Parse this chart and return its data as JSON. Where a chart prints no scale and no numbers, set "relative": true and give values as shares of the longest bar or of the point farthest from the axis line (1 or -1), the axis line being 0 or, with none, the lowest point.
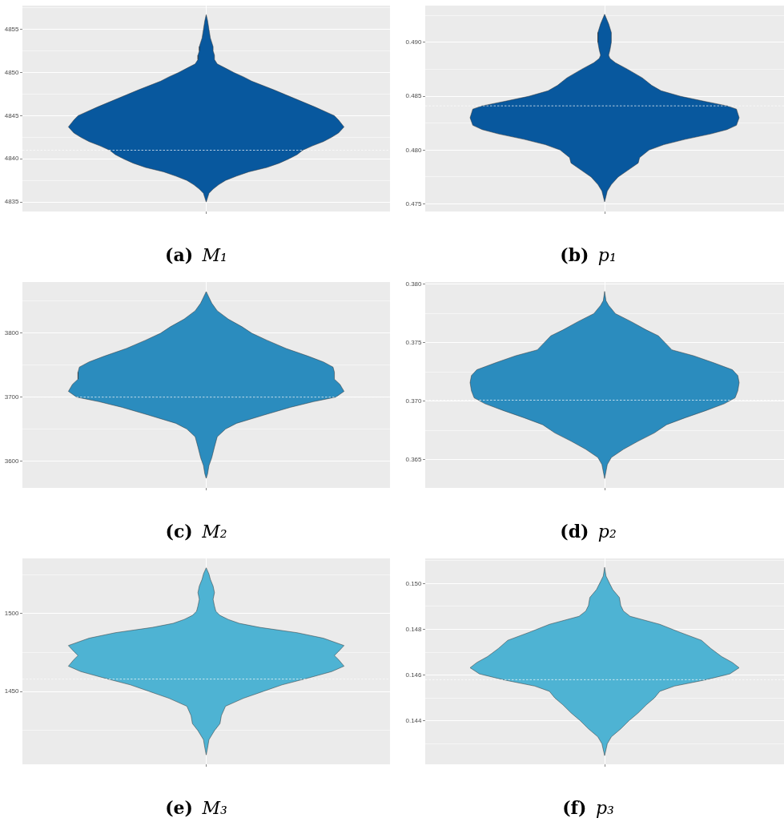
{
  "chart_data": [
    {
      "type": "area",
      "orientation": "horizontal",
      "relative": true,
      "title": "(a) M₁",
      "color": "#08589e",
      "x": [
        4835,
        4835.5,
        4836,
        4836.5,
        4837,
        4837.5,
        4838,
        4838.5,
        4839,
        4839.5,
        4840,
        4840.5,
        4841,
        4841.5,
        4842,
        4842.5,
        4843,
        4843.7,
        4844.5,
        4845,
        4846,
        4847,
        4848,
        4849,
        4849.5,
        4850,
        4850.5,
        4851,
        4851.5,
        4852,
        4852.5,
        4853,
        4854,
        4855,
        4856,
        4856.7
      ],
      "values": [
        0,
        0.01,
        0.02,
        0.05,
        0.09,
        0.14,
        0.22,
        0.31,
        0.44,
        0.53,
        0.6,
        0.66,
        0.7,
        0.77,
        0.85,
        0.91,
        0.96,
        1,
        0.96,
        0.93,
        0.79,
        0.64,
        0.49,
        0.33,
        0.27,
        0.2,
        0.14,
        0.08,
        0.06,
        0.06,
        0.05,
        0.05,
        0.03,
        0.02,
        0.01,
        0
      ],
      "ylim": [
        4833.9,
        4857.75
      ],
      "yticks": [
        4835,
        {
          "value": 4837.5,
          "label": null
        },
        4840,
        {
          "value": 4842.5,
          "label": null
        },
        4845,
        {
          "value": 4847.5,
          "label": null
        },
        4850,
        {
          "value": 4852.5,
          "label": null
        },
        4855,
        {
          "value": 4857.5,
          "label": null
        }
      ],
      "grid": true,
      "tick_labels": "y",
      "ref_lines": [
        {
          "axis": "y",
          "value": 4841,
          "color": "#ffffff",
          "line_style": "dashed"
        }
      ]
    },
    {
      "type": "area",
      "orientation": "horizontal",
      "relative": true,
      "title": "(b) p₁",
      "color": "#08589e",
      "x": [
        0.4752,
        0.4762,
        0.4768,
        0.4775,
        0.4781,
        0.4788,
        0.4793,
        0.48,
        0.4805,
        0.481,
        0.4815,
        0.4819,
        0.4823,
        0.483,
        0.4838,
        0.4841,
        0.4845,
        0.485,
        0.4855,
        0.486,
        0.4867,
        0.4875,
        0.4881,
        0.4885,
        0.4888,
        0.4893,
        0.49,
        0.4909,
        0.4917,
        0.4926
      ],
      "values": [
        0,
        0.02,
        0.05,
        0.1,
        0.17,
        0.25,
        0.26,
        0.33,
        0.44,
        0.6,
        0.79,
        0.91,
        0.98,
        1,
        0.98,
        0.91,
        0.75,
        0.56,
        0.42,
        0.35,
        0.28,
        0.17,
        0.08,
        0.04,
        0.03,
        0.04,
        0.05,
        0.05,
        0.03,
        0
      ],
      "ylim": [
        0.4743,
        0.4934
      ],
      "yticks": [
        0.475,
        {
          "value": 0.4775,
          "label": null
        },
        {
          "value": 0.48,
          "label": "0.480"
        },
        {
          "value": 0.4825,
          "label": null
        },
        0.485,
        {
          "value": 0.4875,
          "label": null
        },
        {
          "value": 0.49,
          "label": "0.490"
        },
        {
          "value": 0.4925,
          "label": null
        }
      ],
      "grid": true,
      "tick_labels": "y",
      "ref_lines": [
        {
          "axis": "y",
          "value": 0.4841,
          "color": "#ffffff",
          "line_style": "dashed"
        }
      ]
    },
    {
      "type": "area",
      "orientation": "horizontal",
      "relative": true,
      "title": "(c) M₂",
      "color": "#2b8cbe",
      "x": [
        3573,
        3580,
        3593,
        3605,
        3622,
        3638,
        3650,
        3659,
        3672,
        3684,
        3693,
        3700,
        3709,
        3720,
        3728,
        3739,
        3747,
        3755,
        3764,
        3776,
        3789,
        3800,
        3810,
        3822,
        3835,
        3847,
        3856,
        3865
      ],
      "values": [
        0,
        0.01,
        0.02,
        0.04,
        0.06,
        0.08,
        0.14,
        0.22,
        0.42,
        0.61,
        0.78,
        0.94,
        1,
        0.97,
        0.93,
        0.93,
        0.92,
        0.85,
        0.74,
        0.58,
        0.44,
        0.33,
        0.26,
        0.16,
        0.08,
        0.04,
        0.02,
        0
      ],
      "ylim": [
        3558,
        3880
      ],
      "yticks": [
        3600,
        {
          "value": 3650,
          "label": null
        },
        3700,
        {
          "value": 3750,
          "label": null
        },
        3800,
        {
          "value": 3850,
          "label": null
        }
      ],
      "grid": true,
      "tick_labels": "y",
      "ref_lines": [
        {
          "axis": "y",
          "value": 3700,
          "color": "#ffffff",
          "line_style": "dashed"
        }
      ]
    },
    {
      "type": "area",
      "orientation": "horizontal",
      "relative": true,
      "title": "(d) p₂",
      "color": "#2b8cbe",
      "x": [
        0.3634,
        0.3646,
        0.3652,
        0.3659,
        0.3666,
        0.3673,
        0.368,
        0.3686,
        0.3692,
        0.3698,
        0.3703,
        0.3709,
        0.3716,
        0.3722,
        0.3727,
        0.3733,
        0.3739,
        0.3744,
        0.375,
        0.3756,
        0.3761,
        0.3768,
        0.3775,
        0.3782,
        0.3786,
        0.3794
      ],
      "values": [
        0,
        0.02,
        0.05,
        0.14,
        0.25,
        0.37,
        0.46,
        0.6,
        0.75,
        0.89,
        0.97,
        0.99,
        1,
        0.99,
        0.95,
        0.81,
        0.66,
        0.5,
        0.45,
        0.4,
        0.31,
        0.2,
        0.08,
        0.03,
        0.01,
        0
      ],
      "ylim": [
        0.3626,
        0.3802
      ],
      "yticks": [
        0.365,
        {
          "value": 0.3675,
          "label": null
        },
        {
          "value": 0.37,
          "label": "0.370"
        },
        {
          "value": 0.3725,
          "label": null
        },
        0.375,
        {
          "value": 0.3775,
          "label": null
        },
        {
          "value": 0.38,
          "label": "0.380"
        }
      ],
      "grid": true,
      "tick_labels": "y",
      "ref_lines": [
        {
          "axis": "y",
          "value": 0.3701,
          "color": "#ffffff",
          "line_style": "dashed"
        }
      ]
    },
    {
      "type": "area",
      "orientation": "horizontal",
      "relative": true,
      "title": "(e) M₃",
      "color": "#4eb3d3",
      "x": [
        1409.4,
        1414,
        1419.2,
        1425,
        1429.5,
        1434.6,
        1440.6,
        1445.7,
        1450,
        1454.3,
        1458.2,
        1462.8,
        1466.3,
        1470.5,
        1473.1,
        1475.7,
        1479.5,
        1484.2,
        1487.7,
        1491.1,
        1493.7,
        1496.2,
        1498.8,
        1501.4,
        1504.8,
        1509.1,
        1513.4,
        1517.6,
        1521.9,
        1525.3,
        1529.3
      ],
      "values": [
        0,
        0.01,
        0.02,
        0.06,
        0.1,
        0.11,
        0.14,
        0.27,
        0.41,
        0.55,
        0.72,
        0.91,
        1,
        0.96,
        0.93,
        0.96,
        1,
        0.85,
        0.66,
        0.39,
        0.24,
        0.16,
        0.1,
        0.07,
        0.06,
        0.05,
        0.06,
        0.05,
        0.03,
        0.02,
        0
      ],
      "ylim": [
        1403.4,
        1535.3
      ],
      "yticks": [
        {
          "value": 1425,
          "label": null
        },
        1450,
        {
          "value": 1475,
          "label": null
        },
        1500,
        {
          "value": 1525,
          "label": null
        }
      ],
      "grid": true,
      "tick_labels": "y",
      "ref_lines": [
        {
          "axis": "y",
          "value": 1458,
          "color": "#ffffff",
          "line_style": "dashed"
        }
      ]
    },
    {
      "type": "area",
      "orientation": "horizontal",
      "relative": true,
      "title": "(f) p₃",
      "color": "#4eb3d3",
      "x": [
        0.14248,
        0.143,
        0.1433,
        0.14365,
        0.144,
        0.14435,
        0.1447,
        0.145,
        0.14529,
        0.14552,
        0.14578,
        0.14605,
        0.14632,
        0.14655,
        0.14681,
        0.14716,
        0.14752,
        0.14787,
        0.14822,
        0.14857,
        0.1488,
        0.14904,
        0.14939,
        0.14974,
        0.15009,
        0.15033,
        0.15071
      ],
      "values": [
        0,
        0.02,
        0.05,
        0.12,
        0.18,
        0.25,
        0.31,
        0.37,
        0.41,
        0.52,
        0.74,
        0.93,
        1,
        0.95,
        0.87,
        0.79,
        0.72,
        0.56,
        0.41,
        0.19,
        0.14,
        0.12,
        0.11,
        0.06,
        0.03,
        0.01,
        0
      ],
      "ylim": [
        0.1421,
        0.1511
      ],
      "yticks": [
        {
          "value": 0.143,
          "label": null
        },
        0.144,
        {
          "value": 0.145,
          "label": null
        },
        0.146,
        {
          "value": 0.147,
          "label": null
        },
        0.148,
        {
          "value": 0.149,
          "label": null
        },
        {
          "value": 0.15,
          "label": "0.150"
        },
        {
          "value": 0.151,
          "label": null
        }
      ],
      "grid": true,
      "tick_labels": "y",
      "ref_lines": [
        {
          "axis": "y",
          "value": 0.1458,
          "color": "#ffffff",
          "line_style": "dashed"
        }
      ]
    }
  ]
}
